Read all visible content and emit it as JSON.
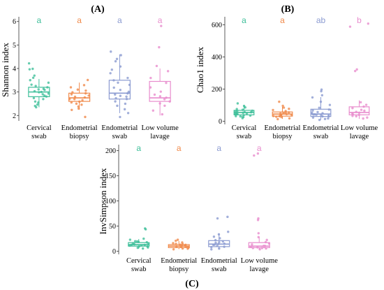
{
  "colors": {
    "cervical": "#3fbf9a",
    "endometrial_biopsy": "#f08a4b",
    "endometrial_swab": "#8b9bd1",
    "low_volume_lavage": "#e88ccd"
  },
  "chart_data": [
    {
      "panel": "(A)",
      "type": "box",
      "ylabel": "Shannon index",
      "ylim": [
        1.8,
        6.2
      ],
      "yticks": [
        2,
        3,
        4,
        5,
        6
      ],
      "categories": [
        {
          "line1": "Cervical",
          "line2": "swab",
          "color_key": "cervical",
          "letter": "a",
          "box": {
            "min": 2.35,
            "q1": 2.8,
            "median": 3.0,
            "q3": 3.2,
            "max": 3.55
          },
          "points": [
            4.2,
            4.0,
            3.95,
            3.7,
            3.6,
            3.5,
            3.4,
            3.3,
            3.25,
            3.2,
            3.15,
            3.1,
            3.1,
            3.05,
            3.0,
            3.0,
            2.95,
            2.9,
            2.85,
            2.8,
            2.75,
            2.7,
            2.6,
            2.55,
            2.45,
            2.4,
            2.35
          ]
        },
        {
          "line1": "Endometrial",
          "line2": "biopsy",
          "color_key": "endometrial_biopsy",
          "letter": "a",
          "box": {
            "min": 2.25,
            "q1": 2.6,
            "median": 2.75,
            "q3": 2.95,
            "max": 3.4
          },
          "points": [
            3.5,
            3.3,
            3.2,
            3.1,
            3.05,
            3.0,
            2.95,
            2.9,
            2.85,
            2.8,
            2.75,
            2.7,
            2.7,
            2.65,
            2.6,
            2.55,
            2.5,
            2.45,
            2.4,
            2.3,
            2.25,
            1.95
          ]
        },
        {
          "line1": "Endometrial",
          "line2": "swab",
          "color_key": "endometrial_swab",
          "letter": "a",
          "box": {
            "min": 2.1,
            "q1": 2.7,
            "median": 2.95,
            "q3": 3.5,
            "max": 4.6
          },
          "points": [
            4.7,
            4.55,
            4.4,
            4.3,
            4.1,
            3.95,
            3.8,
            3.6,
            3.5,
            3.4,
            3.3,
            3.2,
            3.1,
            3.0,
            2.95,
            2.9,
            2.85,
            2.8,
            2.75,
            2.7,
            2.6,
            2.5,
            2.4,
            2.25,
            2.1,
            1.95
          ]
        },
        {
          "line1": "Low volume",
          "line2": "lavage",
          "color_key": "low_volume_lavage",
          "letter": "a",
          "box": {
            "min": 2.0,
            "q1": 2.6,
            "median": 2.75,
            "q3": 3.45,
            "max": 4.0
          },
          "points": [
            5.8,
            4.9,
            4.1,
            3.9,
            3.6,
            3.4,
            3.2,
            3.0,
            2.9,
            2.8,
            2.75,
            2.7,
            2.6,
            2.5,
            2.4,
            2.2,
            2.05
          ]
        }
      ]
    },
    {
      "panel": "(B)",
      "type": "box",
      "ylabel": "Chao1 index",
      "ylim": [
        -15,
        650
      ],
      "yticks": [
        0,
        200,
        400,
        600
      ],
      "categories": [
        {
          "line1": "Cervical",
          "line2": "swab",
          "color_key": "cervical",
          "letter": "a",
          "box": {
            "min": 20,
            "q1": 40,
            "median": 55,
            "q3": 68,
            "max": 100
          },
          "points": [
            110,
            95,
            85,
            78,
            72,
            68,
            64,
            60,
            58,
            55,
            52,
            50,
            48,
            45,
            42,
            40,
            38,
            35,
            30,
            28,
            25,
            20
          ]
        },
        {
          "line1": "Endometrial",
          "line2": "biopsy",
          "color_key": "endometrial_biopsy",
          "letter": "a",
          "box": {
            "min": 15,
            "q1": 32,
            "median": 45,
            "q3": 58,
            "max": 90
          },
          "points": [
            120,
            98,
            85,
            75,
            68,
            62,
            58,
            55,
            50,
            48,
            45,
            42,
            40,
            38,
            35,
            32,
            30,
            28,
            25,
            20,
            15
          ]
        },
        {
          "line1": "Endometrial",
          "line2": "swab",
          "color_key": "endometrial_swab",
          "letter": "ab",
          "box": {
            "min": 10,
            "q1": 30,
            "median": 45,
            "q3": 75,
            "max": 150
          },
          "points": [
            195,
            185,
            160,
            150,
            120,
            100,
            85,
            75,
            68,
            60,
            55,
            50,
            45,
            42,
            40,
            38,
            35,
            30,
            28,
            25,
            20,
            15,
            10
          ]
        },
        {
          "line1": "Low volume",
          "line2": "lavage",
          "color_key": "low_volume_lavage",
          "letter": "b",
          "box": {
            "min": 15,
            "q1": 40,
            "median": 55,
            "q3": 90,
            "max": 130
          },
          "points": [
            610,
            590,
            320,
            310,
            120,
            100,
            90,
            80,
            72,
            65,
            60,
            55,
            50,
            45,
            40,
            35,
            30,
            25,
            18
          ]
        }
      ]
    },
    {
      "panel": "(C)",
      "type": "box",
      "ylabel": "InvSimpson index",
      "ylim": [
        -5,
        212
      ],
      "yticks": [
        0,
        50,
        100,
        150,
        200
      ],
      "categories": [
        {
          "line1": "Cervical",
          "line2": "swab",
          "color_key": "cervical",
          "letter": "a",
          "box": {
            "min": 5,
            "q1": 10,
            "median": 13,
            "q3": 17,
            "max": 24
          },
          "points": [
            46,
            44,
            24,
            22,
            20,
            19,
            18,
            17,
            16,
            15,
            14,
            13,
            13,
            12,
            11,
            10,
            9,
            8,
            7,
            6
          ]
        },
        {
          "line1": "Endometrial",
          "line2": "biopsy",
          "color_key": "endometrial_biopsy",
          "letter": "a",
          "box": {
            "min": 4,
            "q1": 7,
            "median": 10,
            "q3": 13,
            "max": 20
          },
          "points": [
            22,
            20,
            18,
            16,
            15,
            14,
            13,
            12,
            11,
            10,
            10,
            9,
            8,
            7,
            6,
            5,
            4
          ]
        },
        {
          "line1": "Endometrial",
          "line2": "swab",
          "color_key": "endometrial_swab",
          "letter": "a",
          "box": {
            "min": 4,
            "q1": 9,
            "median": 14,
            "q3": 21,
            "max": 35
          },
          "points": [
            68,
            66,
            38,
            33,
            28,
            25,
            22,
            20,
            18,
            16,
            15,
            14,
            13,
            12,
            10,
            9,
            8,
            6,
            4
          ]
        },
        {
          "line1": "Low volume",
          "line2": "lavage",
          "color_key": "low_volume_lavage",
          "letter": "a",
          "box": {
            "min": 3,
            "q1": 7,
            "median": 10,
            "q3": 17,
            "max": 28
          },
          "points": [
            195,
            190,
            65,
            62,
            35,
            28,
            22,
            18,
            15,
            13,
            11,
            10,
            9,
            8,
            7,
            6,
            5,
            3
          ]
        }
      ]
    }
  ]
}
